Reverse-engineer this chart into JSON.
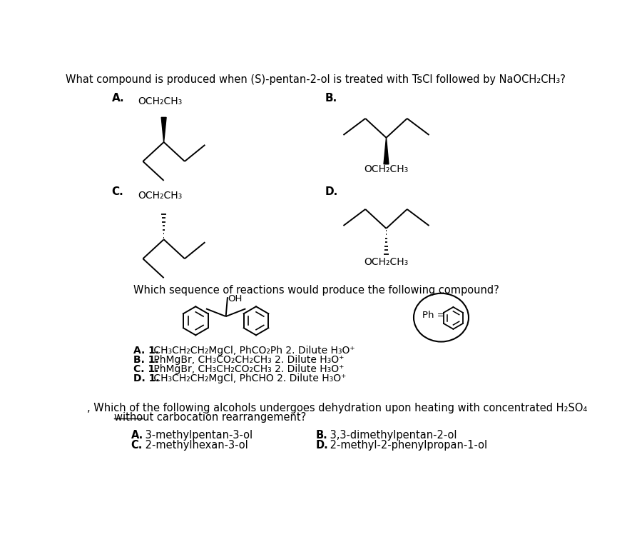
{
  "bg_color": "#ffffff",
  "q1_title": "What compound is produced when (S)-pentan-2-ol is treated with TsCl followed by NaOCH₂CH₃?",
  "q2_title": "Which sequence of reactions would produce the following compound?",
  "q3_line1": ", Which of the following alcohols undergoes dehydration upon heating with concentrated H₂SO₄",
  "q3_line2": "without carbocation rearrangement?",
  "q2_A": "A. 1. CH₃CH₂CH₂MgCl, PhCO₂Ph 2. Dilute H₃O⁺",
  "q2_B": "B. 1. PhMgBr, CH₃CO₂CH₂CH₃ 2. Dilute H₃O⁺",
  "q2_C": "C. 1. PhMgBr, CH₃CH₂CO₂CH₃ 2. Dilute H₃O⁺",
  "q2_D": "D. 1. CH₃CH₂CH₂MgCl, PhCHO 2. Dilute H₃O⁺",
  "q3_A": "A. 3-methylpentan-3-ol",
  "q3_B": "B. 3,3-dimethylpentan-2-ol",
  "q3_C": "C. 2-methylhexan-3-ol",
  "q3_D": "D. 2-methyl-2-phenylpropan-1-ol",
  "och2ch3": "OCH₂CH₃"
}
